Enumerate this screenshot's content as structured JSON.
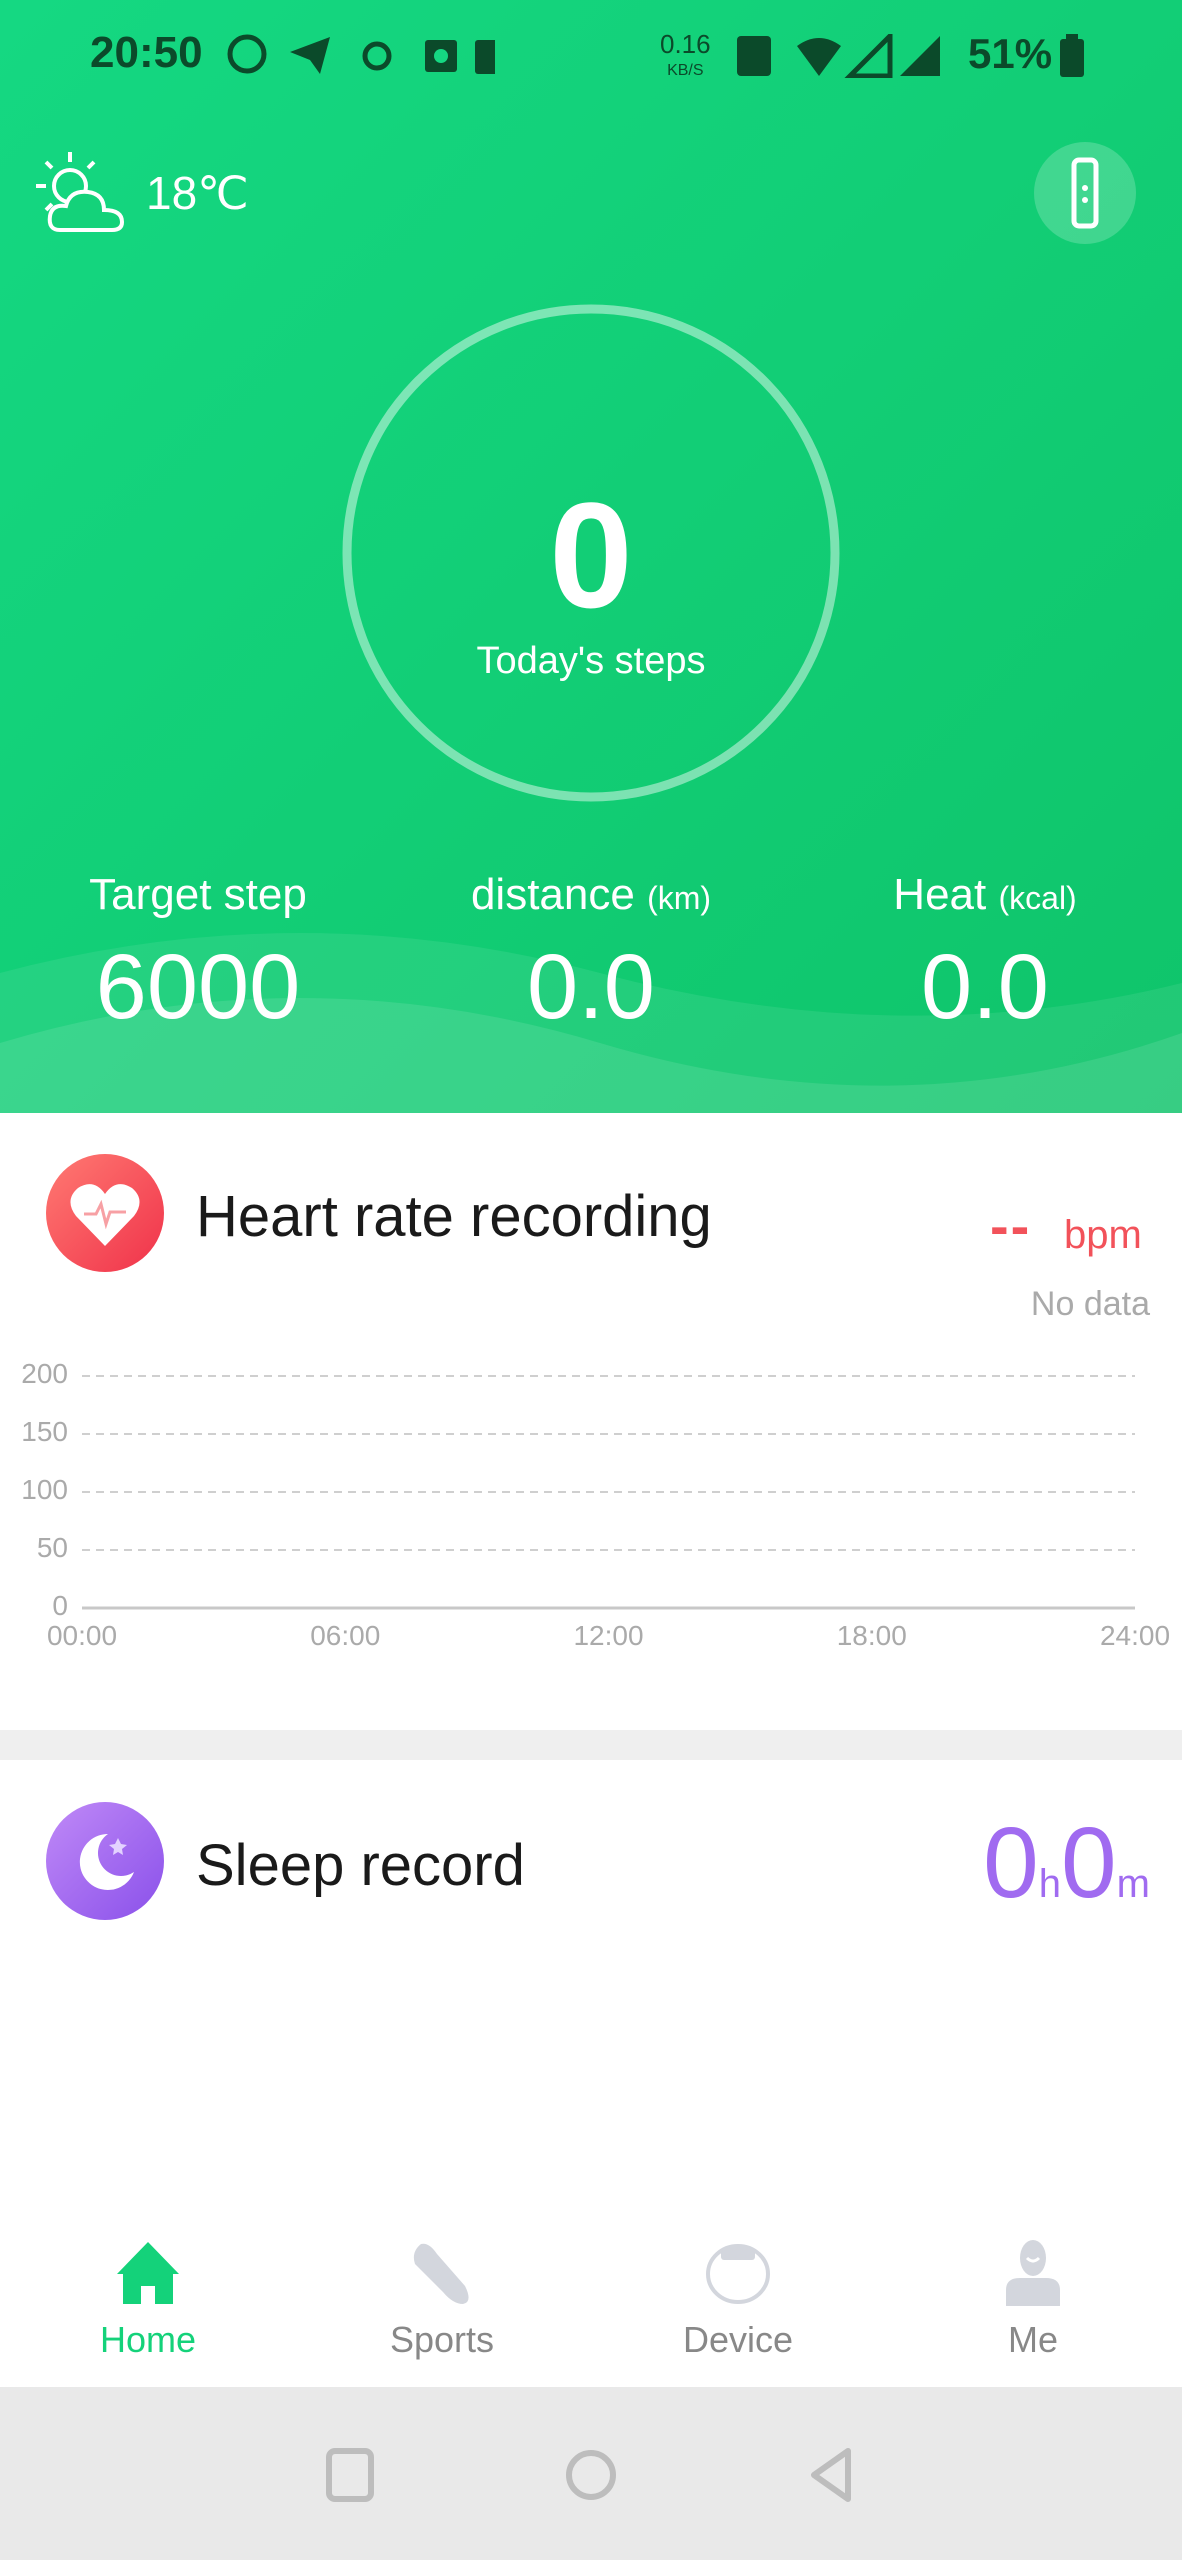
{
  "status_bar": {
    "time": "20:50",
    "net_speed": "0.16",
    "net_unit": "KB/S",
    "battery": "51%",
    "icons": [
      "whatsapp-icon",
      "telegram-icon",
      "sync-icon",
      "camera-icon",
      "gallery-icon",
      "nfc-icon",
      "wifi-icon",
      "signal-icon",
      "signal-icon",
      "battery-icon"
    ]
  },
  "weather": {
    "temp": "18℃",
    "icon": "partly-cloudy-icon"
  },
  "steps": {
    "value": "0",
    "label": "Today's steps",
    "progress": 0
  },
  "stats": [
    {
      "label": "Target step",
      "unit": "",
      "value": "6000"
    },
    {
      "label": "distance",
      "unit": "(km)",
      "value": "0.0"
    },
    {
      "label": "Heat",
      "unit": "(kcal)",
      "value": "0.0"
    }
  ],
  "heart": {
    "title": "Heart rate recording",
    "value": "--",
    "unit": "bpm",
    "status": "No data"
  },
  "chart_data": {
    "type": "line",
    "x_ticks": [
      "00:00",
      "06:00",
      "12:00",
      "18:00",
      "24:00"
    ],
    "y_ticks": [
      "200",
      "150",
      "100",
      "50",
      "0"
    ],
    "ylim": [
      0,
      200
    ],
    "series": [],
    "grid": true,
    "color": "#f25a5f"
  },
  "sleep": {
    "title": "Sleep record",
    "hours": "0",
    "h_unit": "h",
    "minutes": "0",
    "m_unit": "m"
  },
  "nav": [
    {
      "label": "Home",
      "active": true
    },
    {
      "label": "Sports"
    },
    {
      "label": "Device"
    },
    {
      "label": "Me"
    }
  ],
  "colors": {
    "brand": "#14d27a",
    "heart": "#f2525a",
    "sleep": "#a06bf0"
  }
}
